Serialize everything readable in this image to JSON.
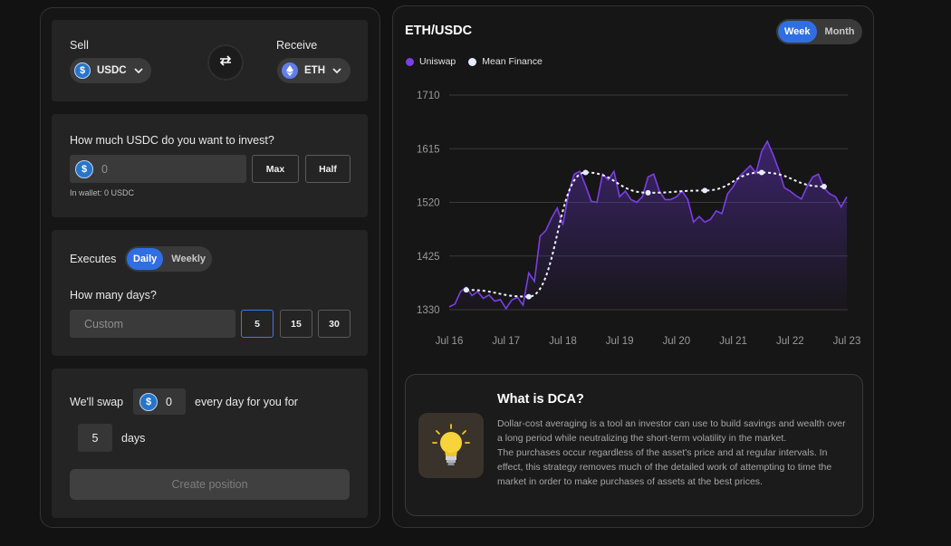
{
  "sell": {
    "label": "Sell",
    "token": "USDC",
    "token_icon": "usdc-icon"
  },
  "receive": {
    "label": "Receive",
    "token": "ETH",
    "token_icon": "eth-icon"
  },
  "invest": {
    "question": "How much USDC do you want to invest?",
    "amount_placeholder": "0",
    "max_label": "Max",
    "half_label": "Half",
    "wallet_text": "In wallet: 0 USDC"
  },
  "executes": {
    "label": "Executes",
    "options": [
      "Daily",
      "Weekly"
    ],
    "selected": "Daily",
    "days_question": "How many days?",
    "custom_placeholder": "Custom",
    "day_options": [
      "5",
      "15",
      "30"
    ],
    "selected_days": "5"
  },
  "summary": {
    "prefix": "We'll swap",
    "amount": "0",
    "suffix": "every day for you for",
    "days": "5",
    "days_label": "days",
    "create_label": "Create position"
  },
  "chart": {
    "title": "ETH/USDC",
    "range_options": [
      "Week",
      "Month"
    ],
    "selected_range": "Week",
    "legend": [
      {
        "name": "Uniswap",
        "color": "#7b3fe4"
      },
      {
        "name": "Mean Finance",
        "color": "#e6ecff"
      }
    ]
  },
  "chart_data": {
    "type": "line",
    "title": "ETH/USDC",
    "xlabel": "",
    "ylabel": "",
    "x_ticks": [
      "Jul 16",
      "Jul 17",
      "Jul 18",
      "Jul 19",
      "Jul 20",
      "Jul 21",
      "Jul 22",
      "Jul 23"
    ],
    "y_ticks": [
      1330,
      1425,
      1520,
      1615,
      1710
    ],
    "ylim": [
      1330,
      1710
    ],
    "xlim": [
      0,
      7
    ],
    "grid": true,
    "legend_position": "top-left",
    "series": [
      {
        "name": "Uniswap",
        "color": "#7b3fe4",
        "x": [
          0,
          0.1,
          0.2,
          0.3,
          0.4,
          0.5,
          0.6,
          0.7,
          0.8,
          0.9,
          1.0,
          1.1,
          1.2,
          1.3,
          1.4,
          1.5,
          1.6,
          1.7,
          1.8,
          1.9,
          2.0,
          2.1,
          2.2,
          2.3,
          2.4,
          2.5,
          2.6,
          2.7,
          2.8,
          2.9,
          3.0,
          3.1,
          3.2,
          3.3,
          3.4,
          3.5,
          3.6,
          3.7,
          3.8,
          3.9,
          4.0,
          4.1,
          4.2,
          4.3,
          4.4,
          4.5,
          4.6,
          4.7,
          4.8,
          4.9,
          5.0,
          5.1,
          5.2,
          5.3,
          5.4,
          5.5,
          5.6,
          5.7,
          5.8,
          5.9,
          6.0,
          6.1,
          6.2,
          6.3,
          6.4,
          6.5,
          6.6,
          6.7,
          6.8,
          6.9,
          7.0
        ],
        "values": [
          1335,
          1340,
          1362,
          1370,
          1355,
          1362,
          1350,
          1356,
          1345,
          1348,
          1332,
          1347,
          1352,
          1338,
          1395,
          1380,
          1460,
          1470,
          1492,
          1510,
          1480,
          1535,
          1570,
          1575,
          1550,
          1522,
          1520,
          1570,
          1560,
          1575,
          1530,
          1540,
          1525,
          1520,
          1530,
          1565,
          1570,
          1540,
          1525,
          1525,
          1530,
          1540,
          1525,
          1485,
          1495,
          1485,
          1490,
          1505,
          1500,
          1535,
          1548,
          1565,
          1575,
          1585,
          1572,
          1610,
          1628,
          1605,
          1578,
          1546,
          1540,
          1532,
          1526,
          1548,
          1565,
          1570,
          1545,
          1535,
          1530,
          1512,
          1530
        ]
      },
      {
        "name": "Mean Finance",
        "color": "#e6ecff",
        "x": [
          0.3,
          1.4,
          2.4,
          3.5,
          4.5,
          5.5,
          6.6
        ],
        "values": [
          1365,
          1353,
          1573,
          1537,
          1541,
          1573,
          1548
        ]
      }
    ]
  },
  "dca_info": {
    "title": "What is DCA?",
    "icon": "lightbulb-icon",
    "paragraph1": "Dollar-cost averaging is a tool an investor can use to build savings and wealth over a long period while neutralizing the short-term volatility in the market.",
    "paragraph2": "The purchases occur regardless of the asset's price and at regular intervals. In effect, this strategy removes much of the detailed work of attempting to time the market in order to make purchases of assets at the best prices."
  }
}
